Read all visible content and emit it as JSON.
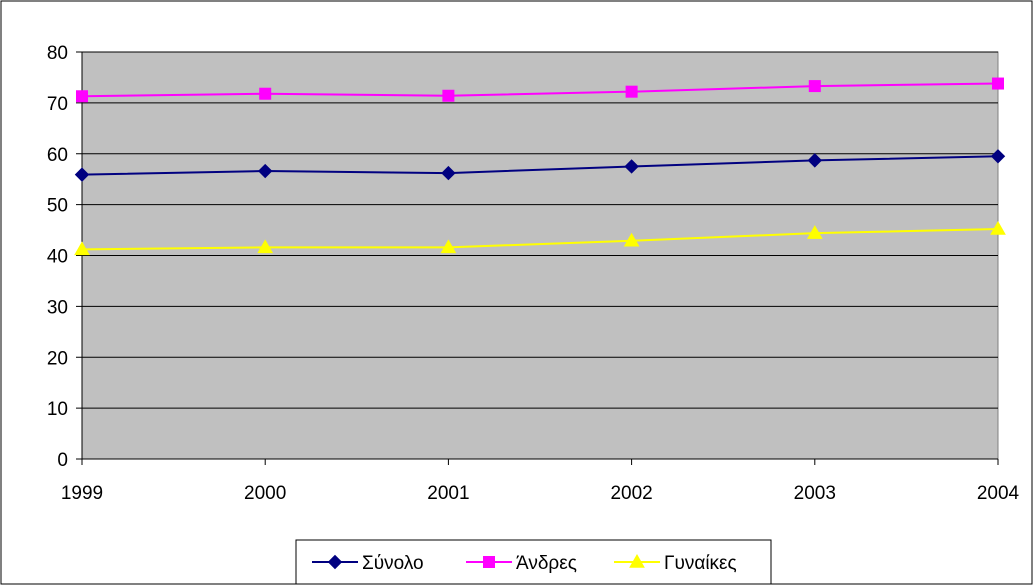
{
  "chart_data": {
    "type": "line",
    "x": [
      "1999",
      "2000",
      "2001",
      "2002",
      "2003",
      "2004"
    ],
    "ylim": [
      0,
      80
    ],
    "yticks": [
      0,
      10,
      20,
      30,
      40,
      50,
      60,
      70,
      80
    ],
    "grid": true,
    "plot_background": "#C0C0C0",
    "legend_position": "bottom",
    "series": [
      {
        "name": "Σύνολο",
        "color": "#000080",
        "marker": "diamond",
        "values": [
          55.9,
          56.6,
          56.2,
          57.5,
          58.7,
          59.5
        ]
      },
      {
        "name": "Άνδρες",
        "color": "#FF00FF",
        "marker": "square",
        "values": [
          71.3,
          71.8,
          71.4,
          72.2,
          73.3,
          73.8
        ]
      },
      {
        "name": "Γυναίκες",
        "color": "#FFFF00",
        "marker": "triangle",
        "values": [
          41.2,
          41.6,
          41.6,
          42.9,
          44.4,
          45.2
        ]
      }
    ]
  }
}
